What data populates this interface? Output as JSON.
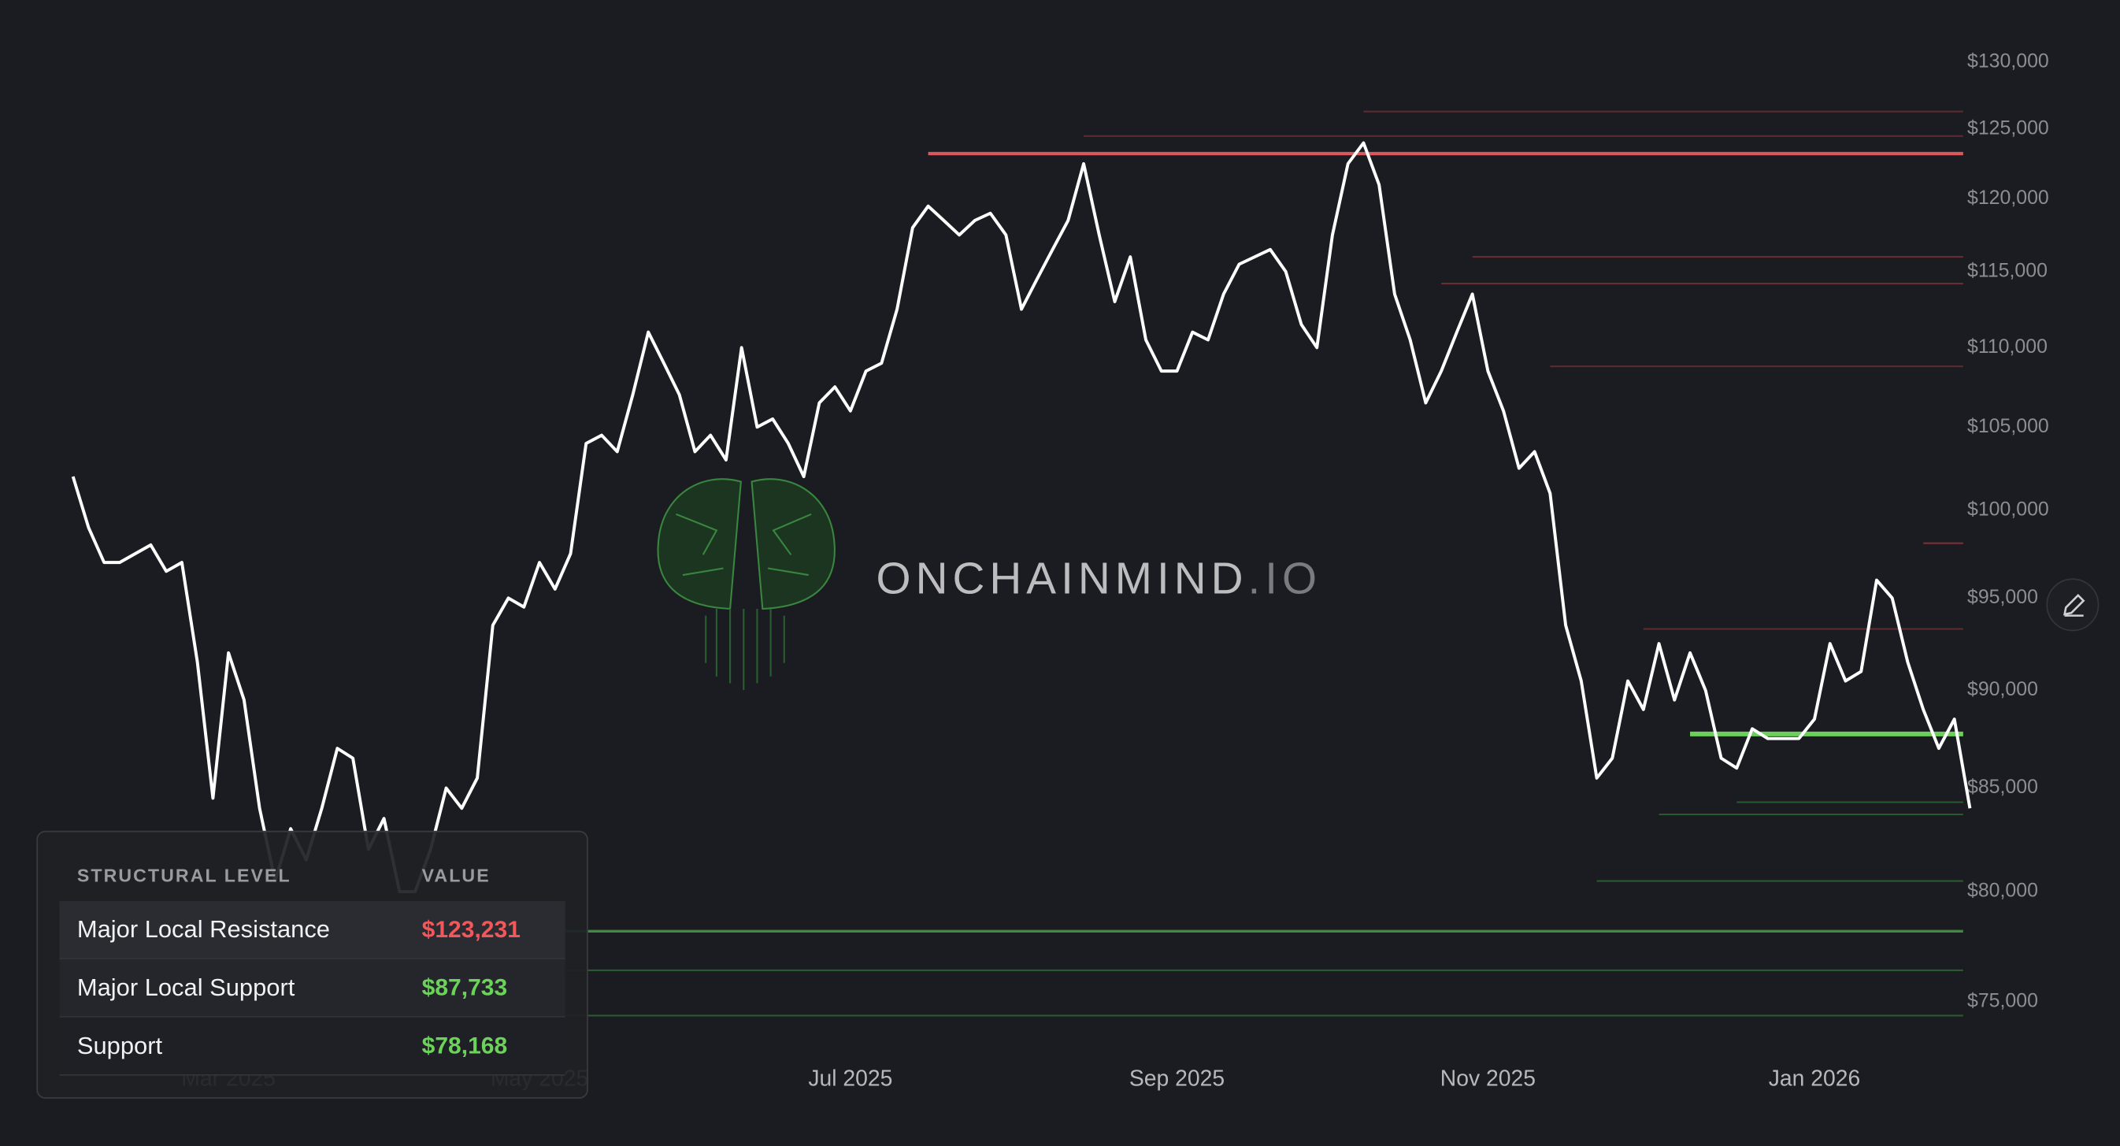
{
  "chart_data": {
    "type": "line",
    "log_scale": true,
    "color": "#ffffff",
    "categories": [
      null,
      null,
      null,
      null,
      null,
      null,
      null,
      null,
      null,
      null,
      "Mar 2025",
      null,
      null,
      null,
      null,
      null,
      null,
      null,
      null,
      null,
      null,
      null,
      null,
      null,
      null,
      null,
      null,
      null,
      null,
      null,
      "May 2025",
      null,
      null,
      null,
      null,
      null,
      null,
      null,
      null,
      null,
      null,
      null,
      null,
      null,
      null,
      null,
      null,
      null,
      null,
      null,
      "Jul 2025",
      null,
      null,
      null,
      null,
      null,
      null,
      null,
      null,
      null,
      null,
      null,
      null,
      null,
      null,
      null,
      null,
      null,
      null,
      null,
      null,
      "Sep 2025",
      null,
      null,
      null,
      null,
      null,
      null,
      null,
      null,
      null,
      null,
      null,
      null,
      null,
      null,
      null,
      null,
      null,
      null,
      null,
      "Nov 2025",
      null,
      null,
      null,
      null,
      null,
      null,
      null,
      null,
      null,
      null,
      null,
      null,
      null,
      null,
      null,
      null,
      null,
      null,
      null,
      null,
      "Jan 2026",
      null,
      null,
      null,
      null,
      null,
      null,
      null,
      null,
      null,
      null
    ],
    "values": [
      102000,
      99000,
      97000,
      97000,
      97500,
      98000,
      96500,
      97000,
      91500,
      84500,
      92000,
      89500,
      84000,
      80500,
      83000,
      81500,
      84000,
      87000,
      86500,
      82000,
      83500,
      80000,
      80000,
      82000,
      85000,
      84000,
      85500,
      93500,
      95000,
      94500,
      97000,
      95500,
      97500,
      104000,
      104500,
      103500,
      107000,
      111000,
      109000,
      107000,
      103500,
      104500,
      103000,
      110000,
      105000,
      105500,
      104000,
      102000,
      106500,
      107500,
      106000,
      108500,
      109000,
      112500,
      118000,
      119500,
      118500,
      117500,
      118500,
      119000,
      117500,
      112500,
      114500,
      116500,
      118500,
      122500,
      117500,
      113000,
      116000,
      110500,
      108500,
      108500,
      111000,
      110500,
      113500,
      115500,
      116000,
      116500,
      115000,
      111500,
      110000,
      117500,
      122500,
      124000,
      121000,
      113500,
      110500,
      106500,
      108500,
      111000,
      113500,
      108500,
      106000,
      102500,
      103500,
      101000,
      93500,
      90500,
      85500,
      86500,
      90500,
      89000,
      92500,
      89500,
      92000,
      90000,
      86500,
      86000,
      88000,
      87500,
      87500,
      87500,
      88500,
      92500,
      90500,
      91000,
      96000,
      95000,
      91500,
      89000,
      87000,
      88500,
      84000
    ],
    "ylim": [
      73500,
      132000
    ],
    "yticks": [
      {
        "value": 75000,
        "label": "$75,000"
      },
      {
        "value": 80000,
        "label": "$80,000"
      },
      {
        "value": 85000,
        "label": "$85,000"
      },
      {
        "value": 90000,
        "label": "$90,000"
      },
      {
        "value": 95000,
        "label": "$95,000"
      },
      {
        "value": 100000,
        "label": "$100,000"
      },
      {
        "value": 105000,
        "label": "$105,000"
      },
      {
        "value": 110000,
        "label": "$110,000"
      },
      {
        "value": 115000,
        "label": "$115,000"
      },
      {
        "value": 120000,
        "label": "$120,000"
      },
      {
        "value": 125000,
        "label": "$125,000"
      },
      {
        "value": 130000,
        "label": "$130,000"
      }
    ],
    "levels": [
      {
        "value": 126300,
        "color": "#5e2c30",
        "width": 1.2,
        "start": 83
      },
      {
        "value": 124500,
        "color": "#5e2c30",
        "width": 1.2,
        "start": 65
      },
      {
        "value": 116000,
        "color": "#6a2e32",
        "width": 1.2,
        "start": 90
      },
      {
        "value": 114200,
        "color": "#6a2e32",
        "width": 1.2,
        "start": 88
      },
      {
        "value": 108800,
        "color": "#5e2c30",
        "width": 1.2,
        "start": 95
      },
      {
        "value": 98100,
        "color": "#7a3034",
        "width": 1.2,
        "start": 119
      },
      {
        "value": 93300,
        "color": "#5e2c30",
        "width": 1.2,
        "start": 101
      },
      {
        "value": 84300,
        "color": "#2a5a30",
        "width": 1.2,
        "start": 107
      },
      {
        "value": 83700,
        "color": "#2a5a30",
        "width": 1.2,
        "start": 102
      },
      {
        "value": 80500,
        "color": "#2a5a30",
        "width": 1.2,
        "start": 98
      },
      {
        "value": 76400,
        "color": "#2a5a30",
        "width": 1.2,
        "start": 0
      },
      {
        "value": 74400,
        "color": "#2a5a30",
        "width": 1.2,
        "start": 0
      },
      {
        "value": 78168,
        "color": "#3f8a3f",
        "width": 2,
        "start": 0
      },
      {
        "value": 123231,
        "color": "#d9585b",
        "width": 2.5,
        "start": 55
      },
      {
        "value": 87733,
        "color": "#6ccf5a",
        "width": 3.5,
        "start": 104
      }
    ]
  },
  "watermark": {
    "name": "ONCHAINMIND",
    "suffix": ".IO"
  },
  "table": {
    "header": [
      "STRUCTURAL LEVEL",
      "VALUE"
    ],
    "rows": [
      {
        "label": "Major Local Resistance",
        "value": "$123,231",
        "color": "#f0585b"
      },
      {
        "label": "Major Local Support",
        "value": "$87,733",
        "color": "#6cd35a"
      },
      {
        "label": "Support",
        "value": "$78,168",
        "color": "#6cd35a"
      }
    ]
  }
}
